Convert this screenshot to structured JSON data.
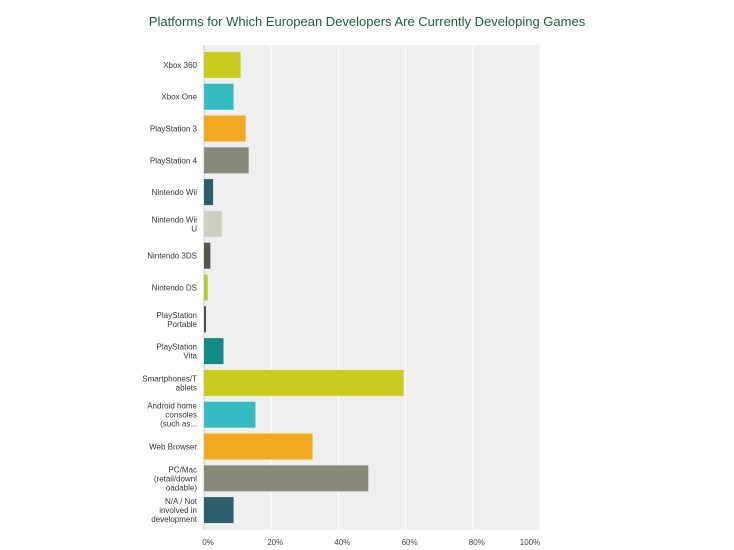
{
  "chart_data": {
    "type": "bar",
    "orientation": "horizontal",
    "title": "Platforms for Which European Developers Are Currently Developing Games",
    "xlabel": "",
    "ylabel": "",
    "xlim": [
      0,
      100
    ],
    "x_ticks": [
      "0%",
      "20%",
      "40%",
      "60%",
      "80%",
      "100%"
    ],
    "grid": true,
    "categories": [
      [
        "Xbox 360"
      ],
      [
        "Xbox One"
      ],
      [
        "PlayStation 3"
      ],
      [
        "PlayStation 4"
      ],
      [
        "Nintendo Wii"
      ],
      [
        "Nintendo Wii",
        "U"
      ],
      [
        "Nintendo 3DS"
      ],
      [
        "Nintendo DS"
      ],
      [
        "PlayStation",
        "Portable"
      ],
      [
        "PlayStation",
        "Vita"
      ],
      [
        "Smartphones/T",
        "ablets"
      ],
      [
        "Android home",
        "consoles",
        "(such as..."
      ],
      [
        "Web Browser"
      ],
      [
        "PC/Mac",
        "(retail/downl",
        "oadable)"
      ],
      [
        "N/A / Not",
        "involved in",
        "development"
      ]
    ],
    "values": [
      10.9,
      8.8,
      12.4,
      13.3,
      2.7,
      5.3,
      1.9,
      1.1,
      0.6,
      5.8,
      59.4,
      15.3,
      32.3,
      48.9,
      8.8
    ],
    "colors": [
      "#c9cc1f",
      "#35bcc2",
      "#f1a91f",
      "#8a8a7b",
      "#2c5f6b",
      "#cfcfc1",
      "#56574a",
      "#b7c92b",
      "#4a4a40",
      "#148a86",
      "#c9cc1f",
      "#35bcc2",
      "#f1a91f",
      "#8a8a7b",
      "#2c5f6b"
    ]
  }
}
